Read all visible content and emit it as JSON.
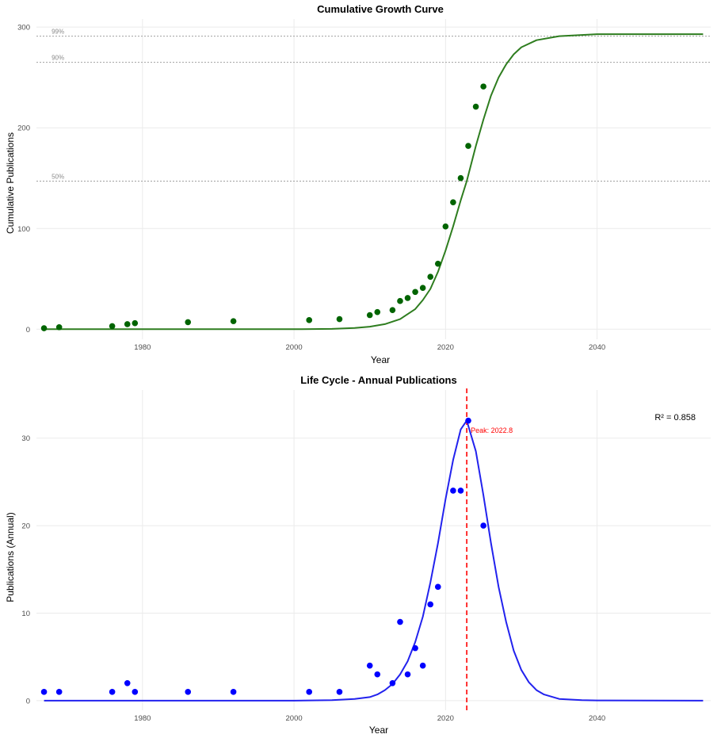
{
  "chart_data": [
    {
      "type": "scatter",
      "title": "Cumulative Growth Curve",
      "xlabel": "Year",
      "ylabel": "Cumulative Publications",
      "xlim": [
        1966,
        2055
      ],
      "ylim": [
        -10,
        308
      ],
      "x_ticks": [
        1980,
        2000,
        2020,
        2040
      ],
      "y_ticks": [
        0,
        100,
        200,
        300
      ],
      "grid": true,
      "colors": {
        "points": "#006400",
        "curve": "#2e7d1f",
        "reference": "#a0a0a0"
      },
      "reference_lines": [
        {
          "label": "99%",
          "y": 291
        },
        {
          "label": "90%",
          "y": 265
        },
        {
          "label": "50%",
          "y": 147
        }
      ],
      "series": [
        {
          "type": "scatter",
          "x": [
            1967,
            1969,
            1976,
            1978,
            1979,
            1986,
            1992,
            2002,
            2006,
            2010,
            2011,
            2013,
            2014,
            2015,
            2016,
            2017,
            2018,
            2019,
            2020,
            2021,
            2022,
            2023,
            2024,
            2025
          ],
          "y": [
            1,
            2,
            3,
            5,
            6,
            7,
            8,
            9,
            10,
            14,
            17,
            19,
            28,
            31,
            37,
            41,
            52,
            65,
            102,
            126,
            150,
            182,
            221,
            241
          ]
        },
        {
          "type": "line",
          "x": [
            1967,
            1990,
            2000,
            2005,
            2008,
            2010,
            2012,
            2014,
            2016,
            2017,
            2018,
            2019,
            2020,
            2021,
            2022,
            2022.8,
            2024,
            2025,
            2026,
            2027,
            2028,
            2029,
            2030,
            2032,
            2035,
            2040,
            2054
          ],
          "y": [
            0,
            0,
            0,
            0.3,
            1.2,
            2.5,
            5,
            10,
            20,
            29,
            40,
            57,
            78,
            102,
            128,
            147,
            182,
            208,
            232,
            250,
            263,
            273,
            280,
            287,
            291,
            293,
            293
          ]
        }
      ]
    },
    {
      "type": "scatter",
      "title": "Life Cycle - Annual Publications",
      "xlabel": "Year",
      "ylabel": "Publications (Annual)",
      "xlim": [
        1966,
        2055
      ],
      "ylim": [
        -1.1,
        35.5
      ],
      "x_ticks": [
        1980,
        2000,
        2020,
        2040
      ],
      "y_ticks": [
        0,
        10,
        20,
        30
      ],
      "grid": true,
      "colors": {
        "points": "#0000ff",
        "curve": "#2222ee",
        "peak": "#ff0000"
      },
      "annotation": "R² = 0.858",
      "peak": {
        "x": 2022.8,
        "label": "Peak: 2022.8"
      },
      "series": [
        {
          "type": "scatter",
          "x": [
            1967,
            1969,
            1976,
            1978,
            1979,
            1986,
            1992,
            2002,
            2006,
            2010,
            2011,
            2013,
            2014,
            2015,
            2016,
            2017,
            2018,
            2019,
            2021,
            2022,
            2023,
            2025
          ],
          "y": [
            1,
            1,
            1,
            2,
            1,
            1,
            1,
            1,
            1,
            4,
            3,
            2,
            9,
            3,
            6,
            4,
            11,
            13,
            24,
            24,
            32,
            20
          ]
        },
        {
          "type": "line",
          "x": [
            1967,
            2000,
            2005,
            2008,
            2010,
            2011,
            2012,
            2013,
            2014,
            2015,
            2016,
            2017,
            2018,
            2019,
            2020,
            2021,
            2022,
            2022.8,
            2024,
            2025,
            2026,
            2027,
            2028,
            2029,
            2030,
            2031,
            2032,
            2033,
            2035,
            2038,
            2040,
            2054
          ],
          "y": [
            0,
            0,
            0.05,
            0.2,
            0.4,
            0.7,
            1.2,
            1.9,
            3,
            4.5,
            6.7,
            9.6,
            13.5,
            18,
            23,
            27.5,
            31,
            32,
            28.5,
            23.5,
            18,
            13,
            9,
            5.7,
            3.5,
            2.1,
            1.2,
            0.7,
            0.2,
            0.05,
            0.02,
            0
          ]
        }
      ]
    }
  ]
}
